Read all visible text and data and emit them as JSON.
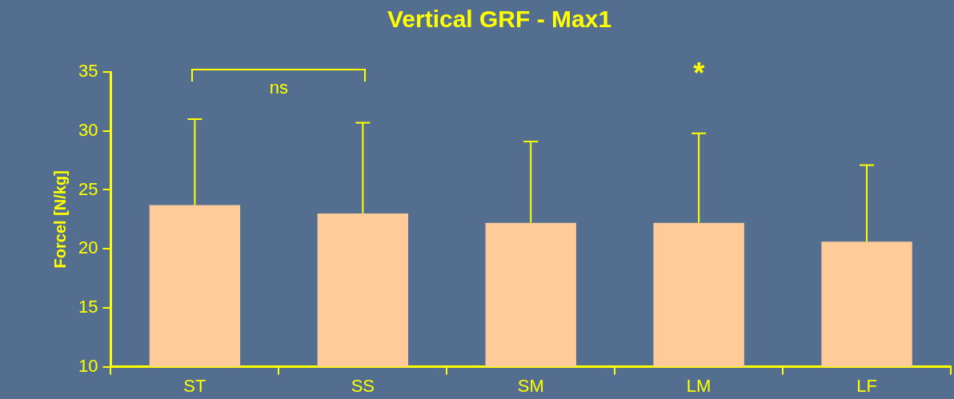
{
  "chart_data": {
    "type": "bar",
    "title": "Vertical GRF - Max1",
    "ylabel": "Forcel [N/kg]",
    "categories": [
      "ST",
      "SS",
      "SM",
      "LM",
      "LF"
    ],
    "values": [
      23.7,
      23.0,
      22.2,
      22.2,
      20.6
    ],
    "errors": [
      [
        23.7,
        31.0
      ],
      [
        23.0,
        30.7
      ],
      [
        22.2,
        29.1
      ],
      [
        22.2,
        29.8
      ],
      [
        20.6,
        27.1
      ]
    ],
    "color": "#ffcc99",
    "ylim": [
      10,
      35
    ],
    "yticks": [
      10,
      15,
      20,
      25,
      30,
      35
    ],
    "grid": false,
    "legend": false,
    "annotations": [
      "ns",
      "*"
    ]
  }
}
